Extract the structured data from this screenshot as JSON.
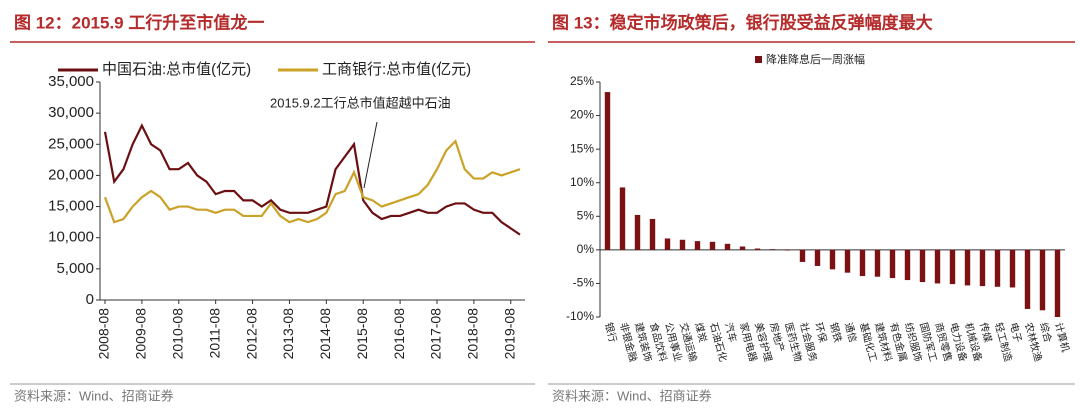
{
  "chart_data": [
    {
      "type": "line",
      "title": "图 12：2015.9 工行升至市值龙一",
      "source": "资料来源：Wind、招商证券",
      "annotation": "2015.9.2工行总市值超越中石油",
      "x": [
        "2008-08",
        "2008-11",
        "2009-02",
        "2009-05",
        "2009-08",
        "2009-11",
        "2010-02",
        "2010-05",
        "2010-08",
        "2010-11",
        "2011-02",
        "2011-05",
        "2011-08",
        "2011-11",
        "2012-02",
        "2012-05",
        "2012-08",
        "2012-11",
        "2013-02",
        "2013-05",
        "2013-08",
        "2013-11",
        "2014-02",
        "2014-05",
        "2014-08",
        "2014-11",
        "2015-02",
        "2015-05",
        "2015-08",
        "2015-11",
        "2016-02",
        "2016-05",
        "2016-08",
        "2016-11",
        "2017-02",
        "2017-05",
        "2017-08",
        "2017-11",
        "2018-02",
        "2018-05",
        "2018-08",
        "2018-11",
        "2019-02",
        "2019-05",
        "2019-08",
        "2019-11"
      ],
      "xticks": [
        "2008-08",
        "2009-08",
        "2010-08",
        "2011-08",
        "2012-08",
        "2013-08",
        "2014-08",
        "2015-08",
        "2016-08",
        "2017-08",
        "2018-08",
        "2019-08"
      ],
      "series": [
        {
          "name": "中国石油:总市值(亿元)",
          "color": "#6b0f12",
          "values": [
            27000,
            19000,
            21000,
            25000,
            28000,
            25000,
            24000,
            21000,
            21000,
            22000,
            20000,
            19000,
            17000,
            17500,
            17500,
            16000,
            16000,
            15000,
            16000,
            14500,
            14000,
            14000,
            14000,
            14500,
            15000,
            21000,
            23000,
            25000,
            16000,
            14000,
            13000,
            13500,
            13500,
            14000,
            14500,
            14000,
            14000,
            15000,
            15500,
            15500,
            14500,
            14000,
            14000,
            12500,
            11500,
            10500
          ]
        },
        {
          "name": "工商银行:总市值(亿元)",
          "color": "#c9a227",
          "values": [
            16500,
            12500,
            13000,
            15000,
            16500,
            17500,
            16500,
            14500,
            15000,
            15000,
            14500,
            14500,
            14000,
            14500,
            14500,
            13500,
            13500,
            13500,
            15500,
            13500,
            12500,
            13000,
            12500,
            13000,
            14000,
            17000,
            17500,
            20500,
            16500,
            16000,
            15000,
            15500,
            16000,
            16500,
            17000,
            18500,
            21000,
            24000,
            25500,
            21000,
            19500,
            19500,
            20500,
            20000,
            20500,
            21000
          ]
        }
      ],
      "ylim": [
        0,
        35000
      ],
      "yticks": [
        0,
        {
          "value": 5000,
          "label": "5,000"
        },
        {
          "value": 10000,
          "label": "10,000"
        },
        {
          "value": 15000,
          "label": "15,000"
        },
        {
          "value": 20000,
          "label": "20,000"
        },
        {
          "value": 25000,
          "label": "25,000"
        },
        {
          "value": 30000,
          "label": "30,000"
        },
        {
          "value": 35000,
          "label": "35,000"
        }
      ]
    },
    {
      "type": "bar",
      "title": "图 13：稳定市场政策后，银行股受益反弹幅度最大",
      "source": "资料来源：Wind、招商证券",
      "categories": [
        "银行",
        "非银金融",
        "建筑装饰",
        "食品饮料",
        "公用事业",
        "交通运输",
        "煤炭",
        "石油石化",
        "汽车",
        "家用电器",
        "美容护理",
        "房地产",
        "医药生物",
        "社会服务",
        "环保",
        "钢铁",
        "通信",
        "基础化工",
        "建筑材料",
        "有色金属",
        "纺织服饰",
        "国防军工",
        "商贸零售",
        "电力设备",
        "机械设备",
        "传媒",
        "轻工制造",
        "电子",
        "农林牧渔",
        "综合",
        "计算机"
      ],
      "series": [
        {
          "name": "降准降息后一周涨幅",
          "color": "#7b1113",
          "values": [
            23.5,
            9.3,
            5.2,
            4.6,
            1.7,
            1.5,
            1.3,
            1.2,
            0.9,
            0.5,
            0.2,
            0.1,
            -0.1,
            -1.8,
            -2.4,
            -2.9,
            -3.4,
            -3.9,
            -4.0,
            -4.2,
            -4.5,
            -4.8,
            -5.0,
            -5.1,
            -5.3,
            -5.4,
            -5.5,
            -5.6,
            -8.8,
            -9.0,
            -10.0
          ]
        }
      ],
      "ylim": [
        -10,
        25
      ],
      "yticks": [
        {
          "value": -10,
          "label": "-10%"
        },
        {
          "value": -5,
          "label": "-5%"
        },
        {
          "value": 0,
          "label": "0%"
        },
        {
          "value": 5,
          "label": "5%"
        },
        {
          "value": 10,
          "label": "10%"
        },
        {
          "value": 15,
          "label": "15%"
        },
        {
          "value": 20,
          "label": "20%"
        },
        {
          "value": 25,
          "label": "25%"
        }
      ]
    }
  ]
}
